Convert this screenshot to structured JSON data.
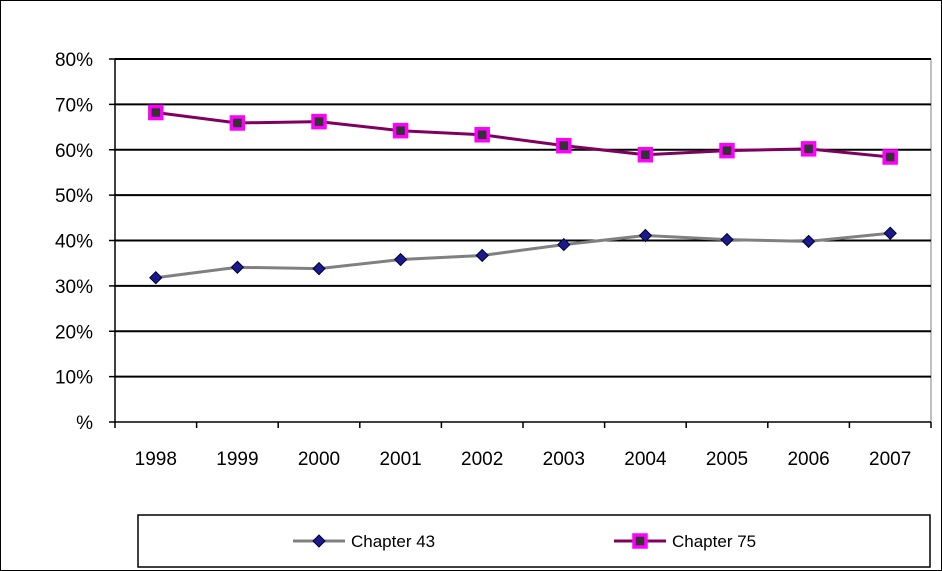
{
  "chart_data": {
    "type": "line",
    "title": "",
    "xlabel": "",
    "ylabel": "",
    "categories": [
      "1998",
      "1999",
      "2000",
      "2001",
      "2002",
      "2003",
      "2004",
      "2005",
      "2006",
      "2007"
    ],
    "ylim": [
      0,
      80
    ],
    "y_ticks": [
      0,
      10,
      20,
      30,
      40,
      50,
      60,
      70,
      80
    ],
    "y_tick_labels": [
      "%",
      "10%",
      "20%",
      "30%",
      "40%",
      "50%",
      "60%",
      "70%",
      "80%"
    ],
    "grid": true,
    "legend_position": "bottom",
    "series": [
      {
        "name": "Chapter 43",
        "values": [
          31.8,
          34.1,
          33.8,
          35.8,
          36.7,
          39.1,
          41.1,
          40.2,
          39.8,
          41.6
        ],
        "line_color": "#808080",
        "marker": "diamond",
        "marker_color": "#1a1a8c"
      },
      {
        "name": "Chapter 75",
        "values": [
          68.2,
          65.9,
          66.2,
          64.2,
          63.3,
          60.9,
          58.9,
          59.8,
          60.2,
          58.4
        ],
        "line_color": "#800060",
        "marker": "square",
        "marker_color": "#ff00ff"
      }
    ]
  }
}
